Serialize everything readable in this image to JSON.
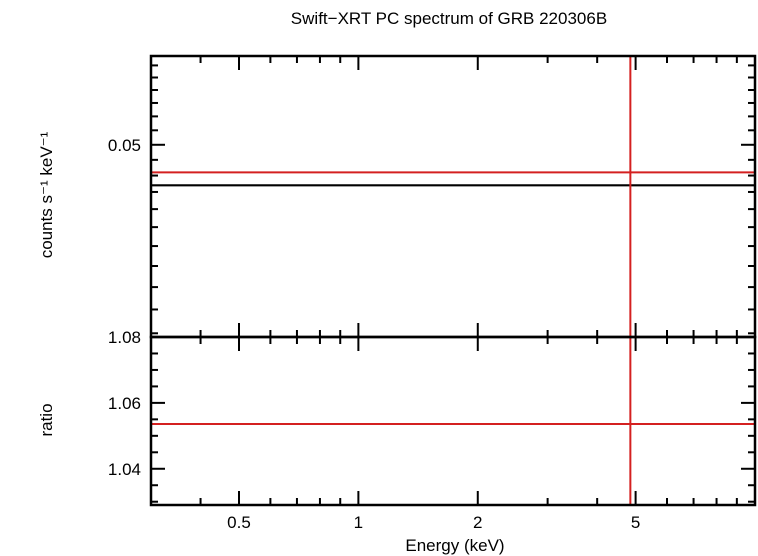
{
  "chart_data": {
    "type": "scatter",
    "title": "Swift−XRT PC spectrum of GRB 220306B",
    "xlabel": "Energy (keV)",
    "xscale": "log",
    "xlim": [
      0.3,
      10
    ],
    "x_ticks": [
      0.5,
      1,
      2,
      5
    ],
    "x_tick_labels": [
      "0.5",
      "1",
      "2",
      "5"
    ],
    "panels": [
      {
        "name": "spectrum",
        "ylabel": "counts s⁻¹ keV⁻¹",
        "yscale": "log",
        "ylim": [
          0.0297,
          0.0636
        ],
        "y_ticks": [
          0.05
        ],
        "y_tick_labels": [
          "0.05"
        ],
        "data": [
          {
            "color": "#d42020",
            "x": 4.85,
            "x_err": [
              0.3,
              10
            ],
            "y": 0.0464,
            "y_err": [
              0.0297,
              0.0636
            ]
          }
        ],
        "model": {
          "color": "#000000",
          "x": [
            0.3,
            10
          ],
          "y": [
            0.0448,
            0.0448
          ]
        }
      },
      {
        "name": "ratio",
        "ylabel": "ratio",
        "yscale": "linear",
        "ylim": [
          1.029,
          1.08
        ],
        "y_ticks": [
          1.04,
          1.06,
          1.08
        ],
        "y_tick_labels": [
          "1.04",
          "1.06",
          "1.08"
        ],
        "data": [
          {
            "color": "#d42020",
            "x": 4.85,
            "x_err": [
              0.3,
              10
            ],
            "y": 1.0536,
            "y_err": [
              1.029,
              1.08
            ]
          }
        ]
      }
    ]
  }
}
